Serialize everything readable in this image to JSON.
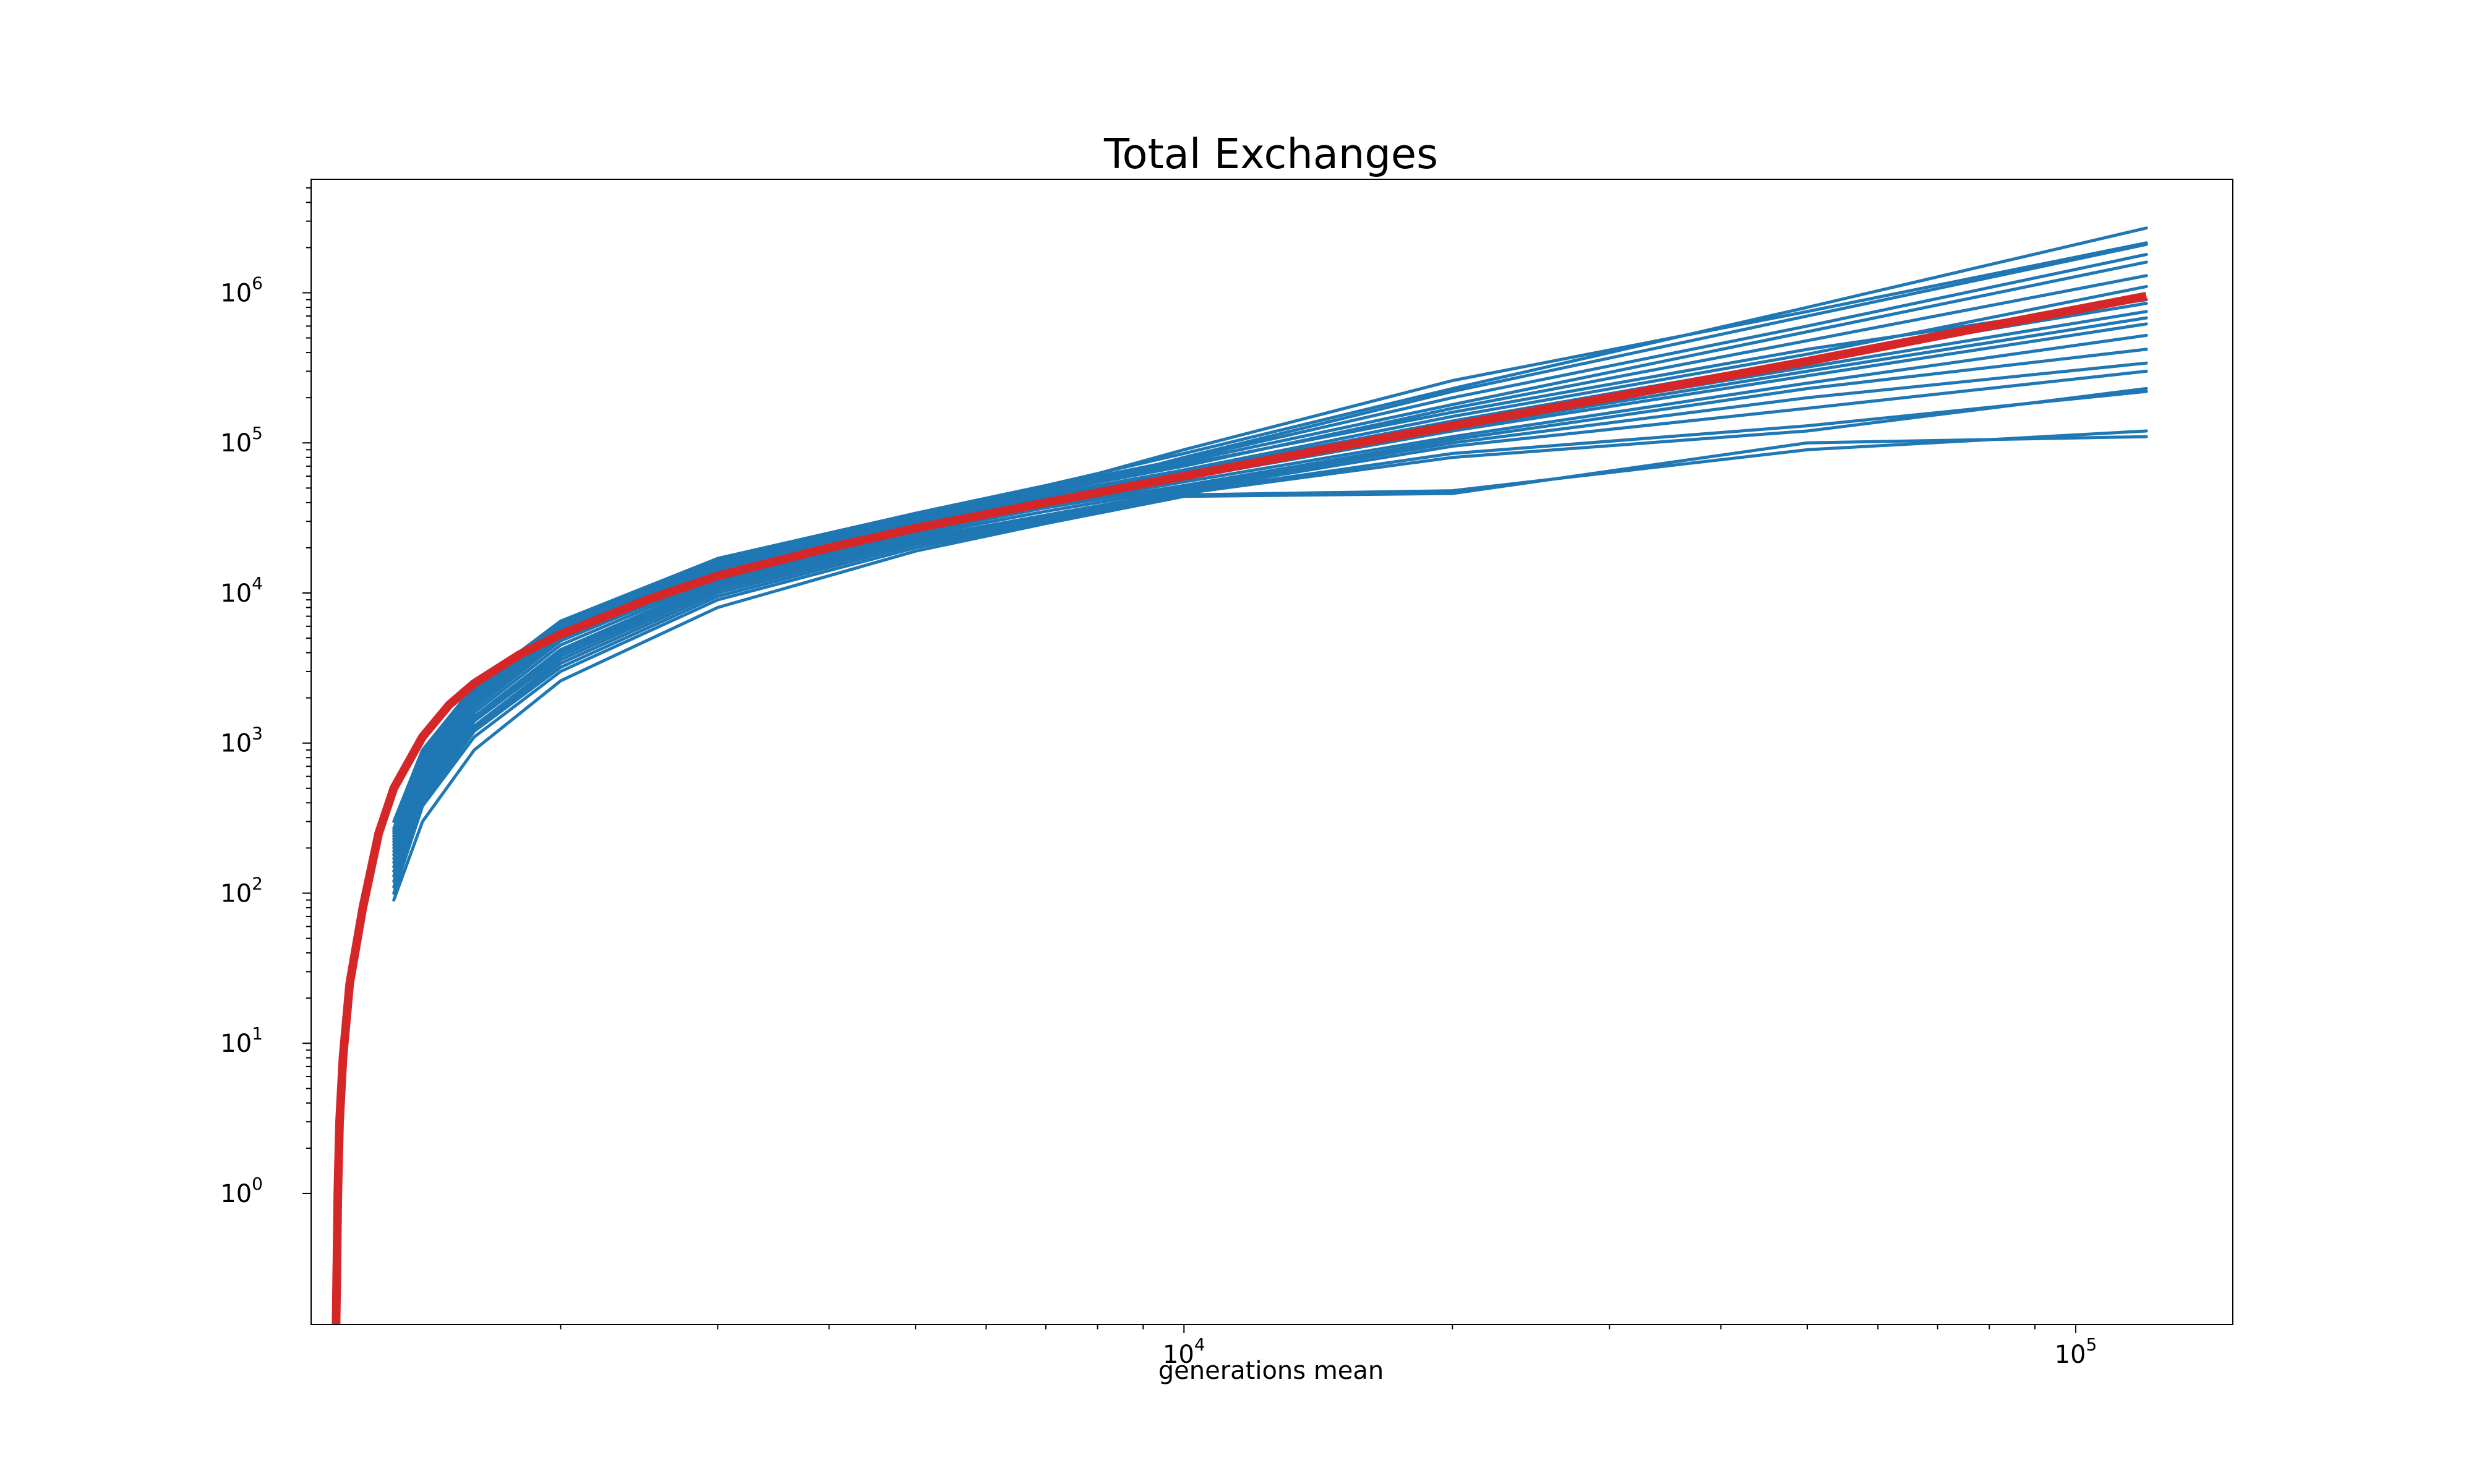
{
  "chart_data": {
    "type": "line",
    "title": "Total Exchanges",
    "xlabel": "generations mean",
    "ylabel": "",
    "xscale": "log",
    "yscale": "symlog",
    "xlim": [
      1050,
      150000
    ],
    "ylim": [
      0,
      5700000
    ],
    "grid": false,
    "legend": "none",
    "x_ticks": [
      {
        "value": 10000,
        "base": "10",
        "exp": "4"
      },
      {
        "value": 100000,
        "base": "10",
        "exp": "5"
      }
    ],
    "y_ticks": [
      {
        "value": 1,
        "base": "10",
        "exp": "0"
      },
      {
        "value": 10,
        "base": "10",
        "exp": "1"
      },
      {
        "value": 100,
        "base": "10",
        "exp": "2"
      },
      {
        "value": 1000,
        "base": "10",
        "exp": "3"
      },
      {
        "value": 10000,
        "base": "10",
        "exp": "4"
      },
      {
        "value": 100000,
        "base": "10",
        "exp": "5"
      },
      {
        "value": 1000000,
        "base": "10",
        "exp": "6"
      }
    ],
    "colors": {
      "runs": "#1f77b4",
      "mean": "#d62728",
      "axes": "#000000"
    },
    "runs": [
      {
        "x": [
          1300,
          1400,
          1600,
          2000,
          3000,
          5000,
          7000,
          10000,
          20000,
          50000,
          120000
        ],
        "y": [
          250,
          800,
          2200,
          6000,
          16000,
          32000,
          48000,
          72000,
          160000,
          420000,
          900000
        ]
      },
      {
        "x": [
          1300,
          1400,
          1600,
          2000,
          3000,
          5000,
          7000,
          10000,
          20000,
          50000,
          120000
        ],
        "y": [
          200,
          650,
          1800,
          5000,
          14000,
          30000,
          45000,
          66000,
          150000,
          390000,
          1100000
        ]
      },
      {
        "x": [
          1300,
          1400,
          1600,
          2000,
          3000,
          5000,
          7000,
          10000,
          20000,
          50000,
          120000
        ],
        "y": [
          300,
          900,
          2400,
          6500,
          17000,
          34000,
          52000,
          85000,
          230000,
          800000,
          2700000
        ]
      },
      {
        "x": [
          1300,
          1400,
          1600,
          2000,
          3000,
          5000,
          7000,
          10000,
          20000,
          50000,
          120000
        ],
        "y": [
          220,
          700,
          2000,
          5500,
          15000,
          31000,
          50000,
          90000,
          260000,
          750000,
          2150000
        ]
      },
      {
        "x": [
          1300,
          1400,
          1600,
          2000,
          3000,
          5000,
          7000,
          10000,
          20000,
          50000,
          120000
        ],
        "y": [
          180,
          600,
          1700,
          4800,
          13000,
          29000,
          46000,
          80000,
          220000,
          700000,
          2100000
        ]
      },
      {
        "x": [
          1300,
          1400,
          1600,
          2000,
          3000,
          5000,
          7000,
          10000,
          20000,
          50000,
          120000
        ],
        "y": [
          260,
          850,
          2300,
          6200,
          16500,
          33000,
          50000,
          75000,
          180000,
          550000,
          1600000
        ]
      },
      {
        "x": [
          1300,
          1400,
          1600,
          2000,
          3000,
          5000,
          7000,
          10000,
          20000,
          50000,
          120000
        ],
        "y": [
          240,
          760,
          2100,
          5800,
          15500,
          31500,
          47000,
          70000,
          170000,
          480000,
          1300000
        ]
      },
      {
        "x": [
          1300,
          1400,
          1600,
          2000,
          3000,
          5000,
          7000,
          10000,
          20000,
          50000,
          120000
        ],
        "y": [
          210,
          680,
          1900,
          5200,
          14500,
          30000,
          44000,
          64000,
          140000,
          360000,
          850000
        ]
      },
      {
        "x": [
          1300,
          1400,
          1600,
          2000,
          3000,
          5000,
          7000,
          10000,
          20000,
          50000,
          120000
        ],
        "y": [
          190,
          620,
          1750,
          4900,
          13500,
          29000,
          42000,
          60000,
          130000,
          320000,
          750000
        ]
      },
      {
        "x": [
          1300,
          1400,
          1600,
          2000,
          3000,
          5000,
          7000,
          10000,
          20000,
          50000,
          120000
        ],
        "y": [
          230,
          740,
          2050,
          5600,
          15000,
          30500,
          43000,
          62000,
          125000,
          300000,
          680000
        ]
      },
      {
        "x": [
          1300,
          1400,
          1600,
          2000,
          3000,
          5000,
          7000,
          10000,
          20000,
          50000,
          120000
        ],
        "y": [
          170,
          560,
          1600,
          4500,
          12500,
          27000,
          40000,
          58000,
          120000,
          280000,
          620000
        ]
      },
      {
        "x": [
          1300,
          1400,
          1600,
          2000,
          3000,
          5000,
          7000,
          10000,
          20000,
          50000,
          120000
        ],
        "y": [
          160,
          520,
          1500,
          4200,
          12000,
          26000,
          38000,
          55000,
          110000,
          250000,
          520000
        ]
      },
      {
        "x": [
          1300,
          1400,
          1600,
          2000,
          3000,
          5000,
          7000,
          10000,
          20000,
          50000,
          120000
        ],
        "y": [
          150,
          500,
          1450,
          4000,
          11500,
          25000,
          37000,
          52000,
          105000,
          230000,
          420000
        ]
      },
      {
        "x": [
          1300,
          1400,
          1600,
          2000,
          3000,
          5000,
          7000,
          10000,
          20000,
          50000,
          120000
        ],
        "y": [
          140,
          480,
          1400,
          3800,
          11000,
          24000,
          35000,
          50000,
          100000,
          200000,
          340000
        ]
      },
      {
        "x": [
          1300,
          1400,
          1600,
          2000,
          3000,
          5000,
          7000,
          10000,
          20000,
          50000,
          120000
        ],
        "y": [
          130,
          450,
          1300,
          3600,
          10500,
          23000,
          33000,
          48000,
          95000,
          170000,
          300000
        ]
      },
      {
        "x": [
          1300,
          1400,
          1600,
          2000,
          3000,
          5000,
          7000,
          10000,
          20000,
          50000,
          120000
        ],
        "y": [
          120,
          420,
          1250,
          3400,
          10000,
          22000,
          32000,
          47000,
          85000,
          130000,
          220000
        ]
      },
      {
        "x": [
          1300,
          1400,
          1600,
          2000,
          3000,
          5000,
          7000,
          10000,
          20000,
          50000,
          120000
        ],
        "y": [
          110,
          400,
          1200,
          3200,
          9500,
          21000,
          31000,
          46000,
          80000,
          120000,
          230000
        ]
      },
      {
        "x": [
          1300,
          1400,
          1600,
          2000,
          3000,
          5000,
          7000,
          10000,
          20000,
          50000,
          120000
        ],
        "y": [
          100,
          380,
          1100,
          3000,
          9000,
          20000,
          30000,
          45000,
          48000,
          90000,
          120000
        ]
      },
      {
        "x": [
          1300,
          1400,
          1600,
          2000,
          3000,
          5000,
          7000,
          10000,
          20000,
          50000,
          120000
        ],
        "y": [
          90,
          300,
          900,
          2600,
          8000,
          19000,
          29000,
          44000,
          46000,
          100000,
          110000
        ]
      },
      {
        "x": [
          1300,
          1400,
          1600,
          2000,
          3000,
          5000,
          7000,
          10000,
          20000,
          50000,
          120000
        ],
        "y": [
          270,
          820,
          2250,
          6100,
          16200,
          33500,
          51000,
          78000,
          200000,
          600000,
          1800000
        ]
      }
    ],
    "mean": {
      "name": "mean",
      "x": [
        1120,
        1125,
        1130,
        1140,
        1160,
        1200,
        1250,
        1300,
        1400,
        1500,
        1600,
        1800,
        2000,
        2500,
        3000,
        4000,
        5000,
        7000,
        10000,
        15000,
        20000,
        30000,
        50000,
        80000,
        120000
      ],
      "y": [
        0,
        1,
        3,
        8,
        25,
        80,
        250,
        500,
        1100,
        1800,
        2500,
        3900,
        5300,
        9000,
        13000,
        20000,
        27000,
        40000,
        60000,
        95000,
        130000,
        200000,
        350000,
        600000,
        950000
      ]
    }
  }
}
